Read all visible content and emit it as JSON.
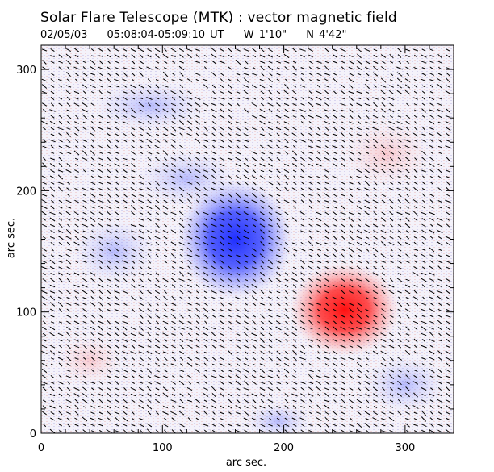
{
  "header": {
    "title": "Solar Flare Telescope (MTK) : vector magnetic field",
    "date": "02/05/03",
    "time_range": "05:08:04-05:09:10 UT",
    "lon": "W 1'10\"",
    "lat": "N 4'42\""
  },
  "chart_data": {
    "type": "heatmap",
    "title": "Solar Flare Telescope (MTK) : vector magnetic field",
    "xlabel": "arc sec.",
    "ylabel": "arc sec.",
    "xlim": [
      0,
      340
    ],
    "ylim": [
      0,
      320
    ],
    "x_ticks": [
      0,
      100,
      200,
      300
    ],
    "y_ticks": [
      0,
      100,
      200,
      300
    ],
    "colors": {
      "negative_polarity": "#3344ff",
      "positive_polarity": "#ff2222",
      "vector": "#000000"
    },
    "features": [
      {
        "polarity": "negative",
        "x": 160,
        "y": 160
      },
      {
        "polarity": "positive",
        "x": 250,
        "y": 102
      }
    ]
  }
}
